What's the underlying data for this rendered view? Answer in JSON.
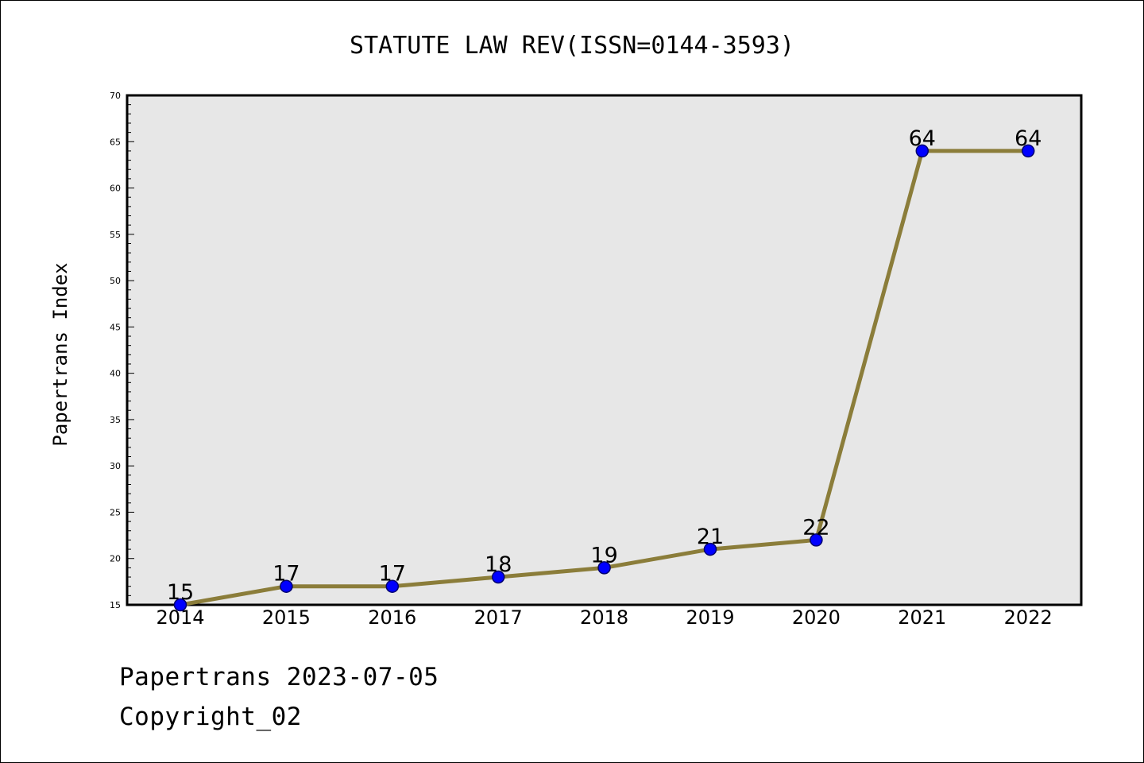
{
  "chart_data": {
    "type": "line",
    "title": "STATUTE LAW REV(ISSN=0144-3593)",
    "xlabel": "",
    "ylabel": "Papertrans Index",
    "categories": [
      "2014",
      "2015",
      "2016",
      "2017",
      "2018",
      "2019",
      "2020",
      "2021",
      "2022"
    ],
    "series": [
      {
        "values": [
          15,
          17,
          17,
          18,
          19,
          21,
          22,
          64,
          64
        ]
      }
    ],
    "data_labels": [
      "15",
      "17",
      "17",
      "18",
      "19",
      "21",
      "22",
      "64",
      "64"
    ],
    "ylim": [
      15,
      70
    ],
    "yticks": [
      "15",
      "20",
      "25",
      "30",
      "35",
      "40",
      "45",
      "50",
      "55",
      "60",
      "65",
      "70"
    ],
    "grid": false,
    "legend": "none",
    "colors": {
      "line": "#8b7d3a",
      "marker_fill": "#0000ff",
      "marker_edge": "#00006e",
      "plot_bg": "#e7e7e7"
    }
  },
  "footer": {
    "line1": "Papertrans 2023-07-05",
    "line2": "Copyright_02"
  }
}
